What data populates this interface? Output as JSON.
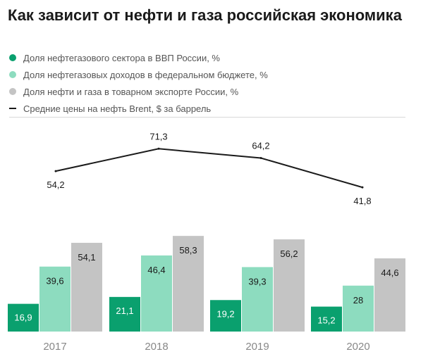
{
  "header": {
    "title": "Как зависит от нефти и газа российская экономика"
  },
  "legend": [
    {
      "label": "Доля нефтегазового сектора в ВВП России, %",
      "color": "#0aa06e",
      "icon": "dot"
    },
    {
      "label": "Доля нефтегазовых доходов в федеральном бюджете, %",
      "color": "#8ddcbf",
      "icon": "dot"
    },
    {
      "label": "Доля нефти и газа в товарном экспорте России, %",
      "color": "#c4c4c4",
      "icon": "dot"
    },
    {
      "label": "Средние цены на нефть Brent, $ за баррель",
      "color": "#1a1a1a",
      "icon": "line"
    }
  ],
  "chart_data": {
    "type": "bar",
    "categories": [
      "2017",
      "2018",
      "2019",
      "2020"
    ],
    "series": [
      {
        "name": "Доля нефтегазового сектора в ВВП России, %",
        "type": "bar",
        "color": "#0aa06e",
        "values": [
          16.9,
          21.1,
          19.2,
          15.2
        ],
        "labels": [
          "16,9",
          "21,1",
          "19,2",
          "15,2"
        ]
      },
      {
        "name": "Доля нефтегазовых доходов в федеральном бюджете, %",
        "type": "bar",
        "color": "#8ddcbf",
        "values": [
          39.6,
          46.4,
          39.3,
          28
        ],
        "labels": [
          "39,6",
          "46,4",
          "39,3",
          "28"
        ]
      },
      {
        "name": "Доля нефти и газа в товарном экспорте России, %",
        "type": "bar",
        "color": "#c4c4c4",
        "values": [
          54.1,
          58.3,
          56.2,
          44.6
        ],
        "labels": [
          "54,1",
          "58,3",
          "56,2",
          "44,6"
        ]
      },
      {
        "name": "Средние цены на нефть Brent, $ за баррель",
        "type": "line",
        "color": "#1a1a1a",
        "values": [
          54.2,
          71.3,
          64.2,
          41.8
        ],
        "labels": [
          "54,2",
          "71,3",
          "64,2",
          "41,8"
        ]
      }
    ],
    "legend": "top-left",
    "grid": false
  }
}
